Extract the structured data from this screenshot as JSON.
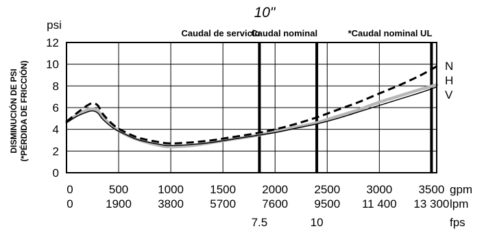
{
  "chart_data": {
    "type": "line",
    "title": "10\"",
    "ylabel_lines": [
      "DISMINUCIÓN DE PSI",
      "(*PÉRDIDA DE FRICCIÓN)"
    ],
    "yunit": "psi",
    "ylim": [
      0,
      12
    ],
    "yticks": [
      "0",
      "2",
      "4",
      "6",
      "8",
      "10",
      "12"
    ],
    "xlim": [
      0,
      3550
    ],
    "grid": true,
    "x_scales": [
      {
        "unit": "gpm",
        "ticks": [
          {
            "x": 0,
            "label": "0"
          },
          {
            "x": 500,
            "label": "500"
          },
          {
            "x": 1000,
            "label": "1000"
          },
          {
            "x": 1500,
            "label": "1500"
          },
          {
            "x": 2000,
            "label": "2000"
          },
          {
            "x": 2500,
            "label": "2500"
          },
          {
            "x": 3000,
            "label": "3000"
          },
          {
            "x": 3500,
            "label": "3500"
          }
        ]
      },
      {
        "unit": "lpm",
        "ticks": [
          {
            "x": 0,
            "label": "0"
          },
          {
            "x": 500,
            "label": "1900"
          },
          {
            "x": 1000,
            "label": "3800"
          },
          {
            "x": 1500,
            "label": "5700"
          },
          {
            "x": 2000,
            "label": "7600"
          },
          {
            "x": 2500,
            "label": "9500"
          },
          {
            "x": 3000,
            "label": "11 400"
          },
          {
            "x": 3500,
            "label": "13 300"
          }
        ]
      },
      {
        "unit": "fps",
        "ticks": [
          {
            "x": 1850,
            "label": "7.5"
          },
          {
            "x": 2400,
            "label": "10"
          }
        ]
      }
    ],
    "reference_lines": [
      {
        "x": 1850,
        "label": "Caudal de servicio"
      },
      {
        "x": 2400,
        "label": "Caudal nominal"
      },
      {
        "x": 3500,
        "label": "*Caudal nominal UL"
      }
    ],
    "series": [
      {
        "name": "N",
        "style": "dashed",
        "color": "#000000",
        "x": [
          0,
          100,
          200,
          250,
          300,
          350,
          450,
          550,
          700,
          900,
          1000,
          1200,
          1400,
          1600,
          1800,
          2000,
          2200,
          2400,
          2600,
          2800,
          3000,
          3200,
          3400,
          3550
        ],
        "y": [
          4.7,
          5.5,
          6.2,
          6.4,
          6.2,
          5.4,
          4.4,
          3.8,
          3.2,
          2.8,
          2.7,
          2.8,
          3.0,
          3.3,
          3.6,
          4.0,
          4.5,
          5.1,
          5.8,
          6.5,
          7.3,
          8.1,
          9.0,
          9.8
        ]
      },
      {
        "name": "H",
        "style": "solid",
        "color": "#b8b8b8",
        "x": [
          0,
          100,
          200,
          250,
          300,
          350,
          450,
          550,
          700,
          900,
          1000,
          1200,
          1400,
          1600,
          1800,
          2000,
          2200,
          2400,
          2600,
          2800,
          3000,
          3200,
          3400,
          3550
        ],
        "y": [
          4.7,
          5.3,
          5.8,
          5.9,
          5.7,
          5.1,
          4.2,
          3.6,
          3.0,
          2.5,
          2.4,
          2.5,
          2.8,
          3.1,
          3.4,
          3.8,
          4.2,
          4.6,
          5.2,
          5.8,
          6.5,
          7.1,
          7.7,
          8.1
        ]
      },
      {
        "name": "V",
        "style": "solid",
        "color": "#000000",
        "x": [
          0,
          100,
          200,
          250,
          300,
          350,
          450,
          550,
          700,
          900,
          1000,
          1200,
          1400,
          1600,
          1800,
          2000,
          2200,
          2400,
          2600,
          2800,
          3000,
          3200,
          3400,
          3550
        ],
        "y": [
          4.6,
          5.2,
          5.6,
          5.7,
          5.5,
          4.9,
          4.1,
          3.6,
          3.0,
          2.6,
          2.5,
          2.6,
          2.8,
          3.1,
          3.4,
          3.7,
          4.1,
          4.5,
          5.0,
          5.6,
          6.2,
          6.8,
          7.4,
          7.9
        ]
      }
    ]
  }
}
